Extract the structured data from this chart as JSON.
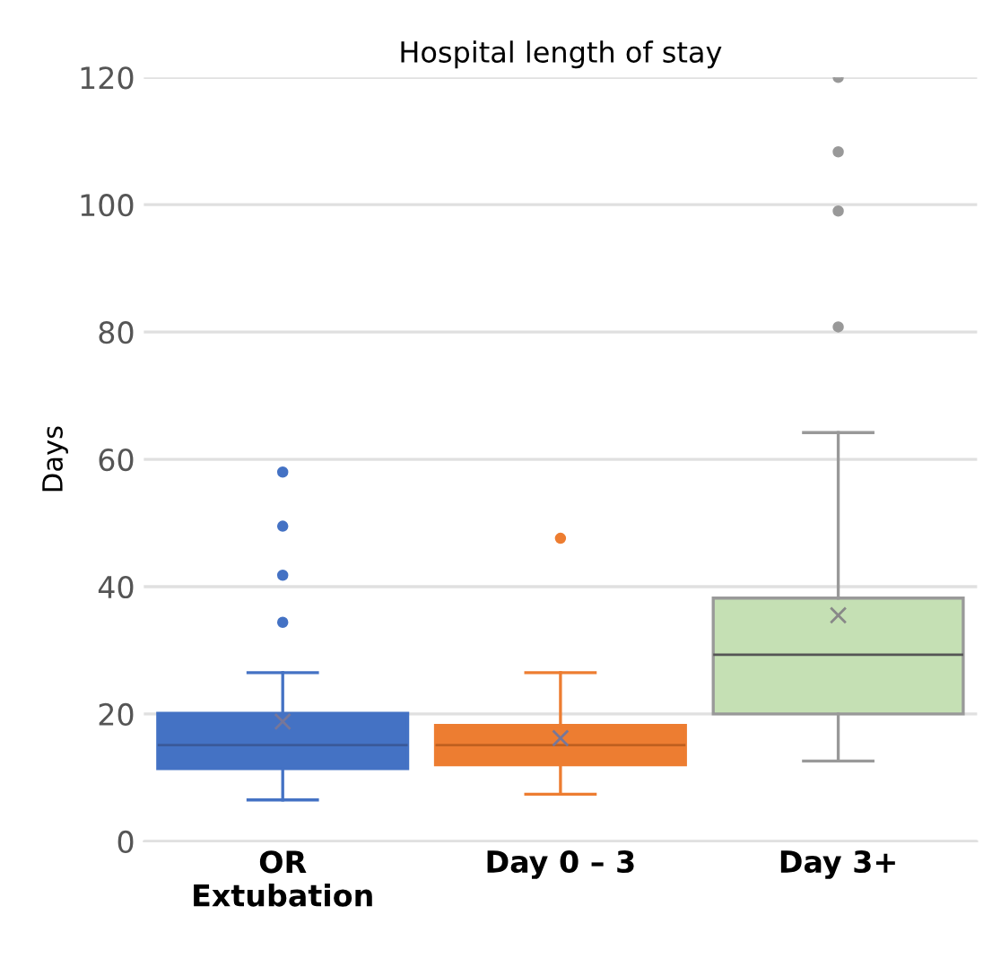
{
  "chart_data": {
    "type": "box",
    "title": "Hospital length of stay",
    "ylabel": "Days",
    "categories": [
      "OR\nExtubation",
      "Day 0 – 3",
      "Day 3+"
    ],
    "colors": [
      "#4472c4",
      "#ed7d31",
      "#c5e0b4"
    ],
    "boxes": [
      {
        "low": 6.5,
        "q1": 11.4,
        "median": 15.1,
        "q3": 20.1,
        "high": 26.5,
        "mean": 18.8,
        "outliers": [
          58,
          49.5,
          41.8,
          34.4
        ]
      },
      {
        "low": 7.4,
        "q1": 12,
        "median": 15.1,
        "q3": 18.2,
        "high": 26.5,
        "mean": 16.2,
        "outliers": [
          47.6
        ]
      },
      {
        "low": 12.6,
        "q1": 20,
        "median": 29.3,
        "q3": 38.2,
        "high": 64.2,
        "mean": 35.5,
        "outliers": [
          120,
          108.3,
          99,
          80.8
        ]
      }
    ],
    "ylim": [
      0,
      120
    ],
    "yticks": [
      0,
      20,
      40,
      60,
      80,
      100,
      120
    ],
    "grid": "y"
  }
}
